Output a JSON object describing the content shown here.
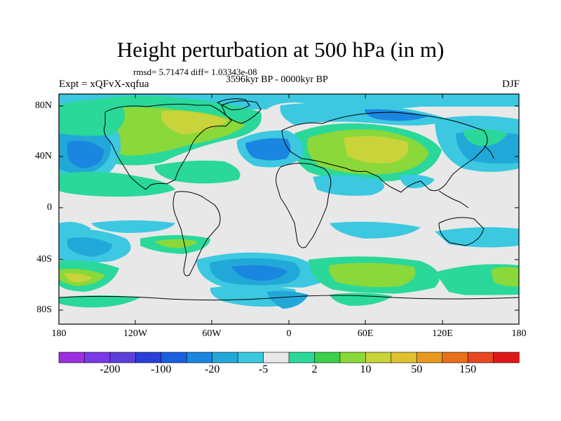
{
  "title": "Height perturbation at 500 hPa (in m)",
  "stats": "rmsd= 5.71474 diff= 1.03343e-08",
  "period": "3596kyr BP - 0000kyr BP",
  "experiment": "Expt = xQFvX-xqfua",
  "season": "DJF",
  "map": {
    "type": "filled-contour-map",
    "projection": "cylindrical-equidistant",
    "lon_range": [
      -180,
      180
    ],
    "lat_range": [
      -90,
      90
    ],
    "lat_ticks": [
      "80N",
      "40N",
      "0",
      "40S",
      "80S"
    ],
    "lon_ticks": [
      "180",
      "120W",
      "60W",
      "0",
      "60E",
      "120E",
      "180"
    ],
    "missing_color": "#e8e8e8"
  },
  "colorbar": {
    "labels": [
      "-200",
      "-100",
      "-20",
      "-5",
      "2",
      "10",
      "50",
      "150"
    ],
    "colors": [
      "#9b30e0",
      "#7a3ae8",
      "#5b3fd8",
      "#2b3fd8",
      "#1a5fe0",
      "#1a86e0",
      "#22a8d8",
      "#3cc8e0",
      "#e8e8e8",
      "#2ad89a",
      "#3ad04a",
      "#8ad83a",
      "#c8d43a",
      "#e0c030",
      "#e89a20",
      "#e87018",
      "#e84820",
      "#e01818"
    ]
  }
}
